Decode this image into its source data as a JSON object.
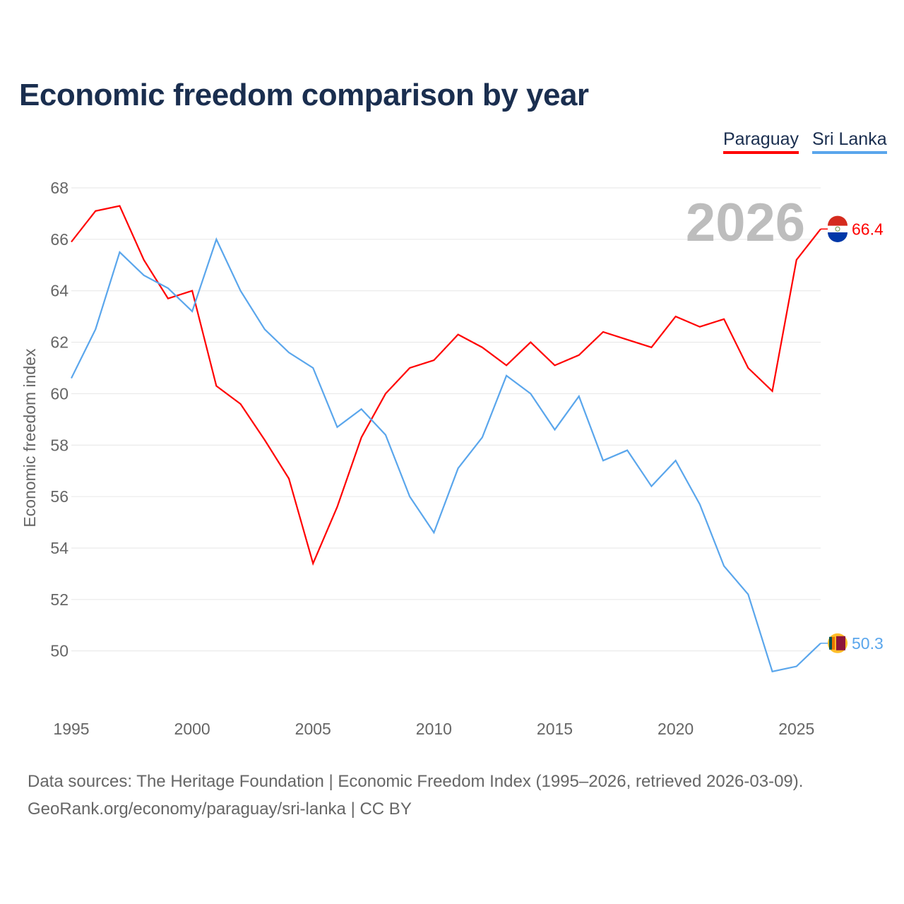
{
  "chart_data": {
    "type": "line",
    "title": "Economic freedom comparison by year",
    "xlabel": "",
    "ylabel": "Economic freedom index",
    "x": [
      1995,
      1996,
      1997,
      1998,
      1999,
      2000,
      2001,
      2002,
      2003,
      2004,
      2005,
      2006,
      2007,
      2008,
      2009,
      2010,
      2011,
      2012,
      2013,
      2014,
      2015,
      2016,
      2017,
      2018,
      2019,
      2020,
      2021,
      2022,
      2023,
      2024,
      2025,
      2026
    ],
    "xlim": [
      1995,
      2026
    ],
    "ylim": [
      47.85,
      68
    ],
    "xticks": [
      1995,
      2000,
      2005,
      2010,
      2015,
      2020,
      2025
    ],
    "yticks": [
      50,
      52,
      54,
      56,
      58,
      60,
      62,
      64,
      66,
      68
    ],
    "grid": true,
    "legend_position": "top-right",
    "year_label": "2026",
    "series": [
      {
        "name": "Paraguay",
        "color": "#ff0000",
        "end_label": "66.4",
        "values": [
          65.9,
          67.1,
          67.3,
          65.2,
          63.7,
          64.0,
          60.3,
          59.6,
          58.2,
          56.7,
          53.4,
          55.6,
          58.3,
          60.0,
          61.0,
          61.3,
          62.3,
          61.8,
          61.1,
          62.0,
          61.1,
          61.5,
          62.4,
          62.1,
          61.8,
          63.0,
          62.6,
          62.9,
          61.0,
          60.1,
          65.2,
          66.4
        ]
      },
      {
        "name": "Sri Lanka",
        "color": "#5aa6ec",
        "end_label": "50.3",
        "values": [
          60.6,
          62.5,
          65.5,
          64.6,
          64.1,
          63.2,
          66.0,
          64.0,
          62.5,
          61.6,
          61.0,
          58.7,
          59.4,
          58.4,
          56.0,
          54.6,
          57.1,
          58.3,
          60.7,
          60.0,
          58.6,
          59.9,
          57.4,
          57.8,
          56.4,
          57.4,
          55.7,
          53.3,
          52.2,
          49.2,
          49.4,
          50.3
        ]
      }
    ]
  },
  "source": {
    "line1": "Data sources: The Heritage Foundation | Economic Freedom Index (1995–2026, retrieved 2026-03-09).",
    "line2": "GeoRank.org/economy/paraguay/sri-lanka | CC BY"
  }
}
